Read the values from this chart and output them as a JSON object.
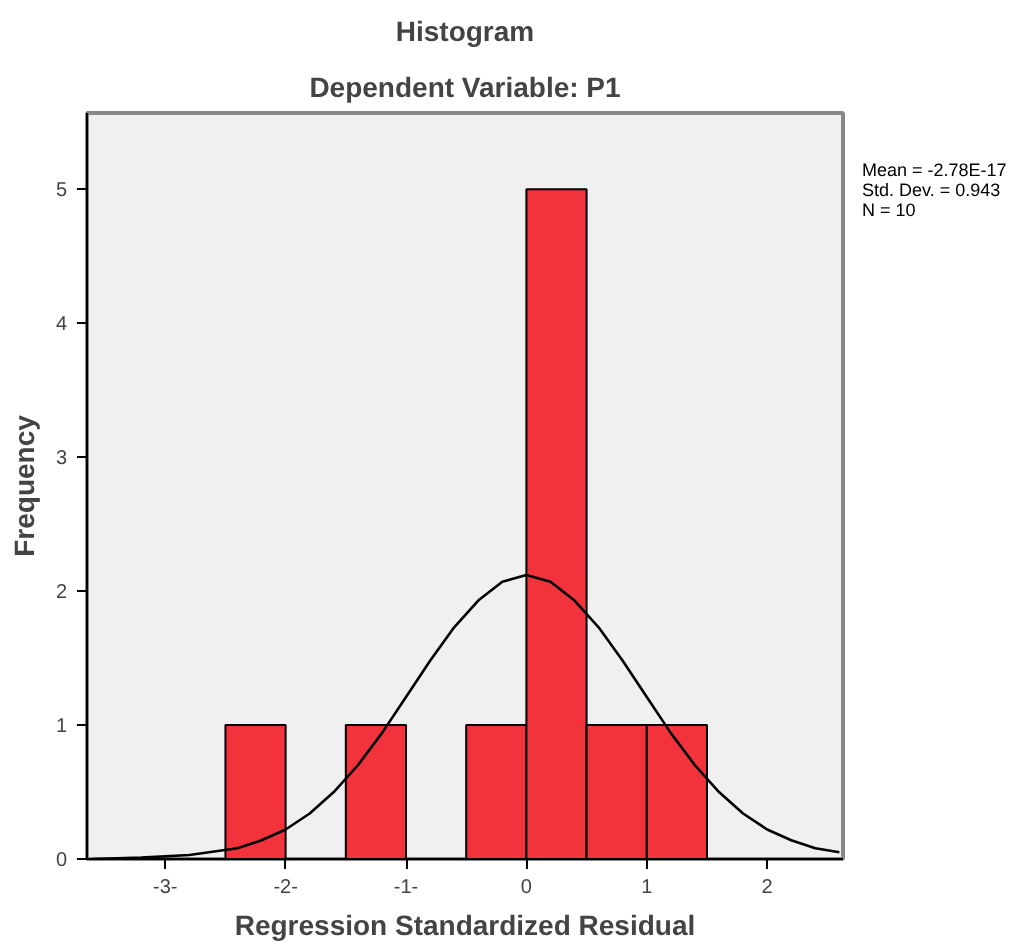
{
  "chart_data": {
    "type": "histogram",
    "title": "Histogram",
    "subtitle": "Dependent Variable: P1",
    "xlabel": "Regression Standardized Residual",
    "ylabel": "Frequency",
    "bins": [
      -2.5,
      -2.0,
      -1.5,
      -1.0,
      -0.5,
      0.0,
      0.5,
      1.0,
      1.5
    ],
    "values": [
      1,
      0,
      1,
      0,
      1,
      5,
      1,
      1
    ],
    "color": "#f2333c",
    "series": [
      {
        "type": "line",
        "color": "#000000",
        "x": [
          -3.6,
          -3.2,
          -2.8,
          -2.4,
          -2.2,
          -2.0,
          -1.8,
          -1.6,
          -1.4,
          -1.2,
          -1.0,
          -0.8,
          -0.6,
          -0.4,
          -0.2,
          0.0,
          0.2,
          0.4,
          0.6,
          0.8,
          1.0,
          1.2,
          1.4,
          1.6,
          1.8,
          2.0,
          2.2,
          2.4,
          2.6
        ],
        "values": [
          0.0,
          0.01,
          0.03,
          0.08,
          0.14,
          0.22,
          0.34,
          0.5,
          0.7,
          0.94,
          1.21,
          1.48,
          1.73,
          1.93,
          2.07,
          2.12,
          2.07,
          1.93,
          1.73,
          1.48,
          1.21,
          0.94,
          0.7,
          0.5,
          0.34,
          0.22,
          0.14,
          0.08,
          0.05
        ]
      }
    ],
    "xlim": [
      -3.65,
      2.63
    ],
    "ylim": [
      0,
      5.57
    ],
    "xticks": [
      {
        "value": -3,
        "label": "-3-"
      },
      {
        "value": -2,
        "label": "-2-"
      },
      {
        "value": -1,
        "label": "-1-"
      },
      0,
      1,
      2
    ],
    "yticks": [
      0,
      1,
      2,
      3,
      4,
      5
    ],
    "annotations": [
      "Mean = -2.78E-17",
      "Std. Dev. = 0.943",
      "N = 10"
    ],
    "grid": false
  }
}
